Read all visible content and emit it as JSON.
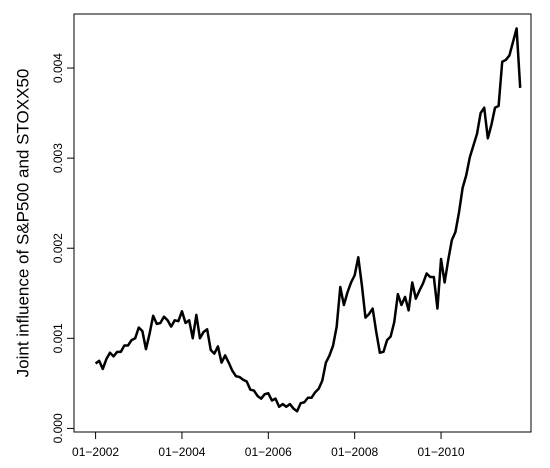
{
  "chart_data": {
    "type": "line",
    "ylabel": "Joint influence of S&P500 and STOXX50",
    "x": [
      "2002-01",
      "2002-02",
      "2002-03",
      "2002-04",
      "2002-05",
      "2002-06",
      "2002-07",
      "2002-08",
      "2002-09",
      "2002-10",
      "2002-11",
      "2002-12",
      "2003-01",
      "2003-02",
      "2003-03",
      "2003-04",
      "2003-05",
      "2003-06",
      "2003-07",
      "2003-08",
      "2003-09",
      "2003-10",
      "2003-11",
      "2003-12",
      "2004-01",
      "2004-02",
      "2004-03",
      "2004-04",
      "2004-05",
      "2004-06",
      "2004-07",
      "2004-08",
      "2004-09",
      "2004-10",
      "2004-11",
      "2004-12",
      "2005-01",
      "2005-02",
      "2005-03",
      "2005-04",
      "2005-05",
      "2005-06",
      "2005-07",
      "2005-08",
      "2005-09",
      "2005-10",
      "2005-11",
      "2005-12",
      "2006-01",
      "2006-02",
      "2006-03",
      "2006-04",
      "2006-05",
      "2006-06",
      "2006-07",
      "2006-08",
      "2006-09",
      "2006-10",
      "2006-11",
      "2006-12",
      "2007-01",
      "2007-02",
      "2007-03",
      "2007-04",
      "2007-05",
      "2007-06",
      "2007-07",
      "2007-08",
      "2007-09",
      "2007-10",
      "2007-11",
      "2007-12",
      "2008-01",
      "2008-02",
      "2008-03",
      "2008-04",
      "2008-05",
      "2008-06",
      "2008-07",
      "2008-08",
      "2008-09",
      "2008-10",
      "2008-11",
      "2008-12",
      "2009-01",
      "2009-02",
      "2009-03",
      "2009-04",
      "2009-05",
      "2009-06",
      "2009-07",
      "2009-08",
      "2009-09",
      "2009-10",
      "2009-11",
      "2009-12",
      "2010-01",
      "2010-02",
      "2010-03",
      "2010-04",
      "2010-05",
      "2010-06",
      "2010-07",
      "2010-08",
      "2010-09",
      "2010-10",
      "2010-11",
      "2010-12",
      "2011-01",
      "2011-02",
      "2011-03",
      "2011-04",
      "2011-05",
      "2011-06",
      "2011-07",
      "2011-08",
      "2011-09",
      "2011-10",
      "2011-11"
    ],
    "series": [
      {
        "color": "#000000",
        "values": [
          0.00072,
          0.00075,
          0.00066,
          0.00077,
          0.00084,
          0.0008,
          0.00085,
          0.00085,
          0.00092,
          0.00092,
          0.00098,
          0.001,
          0.00112,
          0.00108,
          0.00088,
          0.00105,
          0.00125,
          0.00116,
          0.00117,
          0.00124,
          0.0012,
          0.00113,
          0.0012,
          0.00119,
          0.0013,
          0.00117,
          0.0012,
          0.001,
          0.00126,
          0.001,
          0.00107,
          0.0011,
          0.00087,
          0.00083,
          0.00091,
          0.00073,
          0.00081,
          0.00073,
          0.00064,
          0.00058,
          0.00057,
          0.00054,
          0.00052,
          0.00043,
          0.00042,
          0.00036,
          0.00033,
          0.00038,
          0.00039,
          0.00031,
          0.00033,
          0.00024,
          0.00027,
          0.00024,
          0.00027,
          0.00022,
          0.00019,
          0.00028,
          0.00029,
          0.00034,
          0.00034,
          0.0004,
          0.00044,
          0.00053,
          0.00073,
          0.00081,
          0.00092,
          0.00113,
          0.00157,
          0.00137,
          0.00151,
          0.00162,
          0.0017,
          0.0019,
          0.00159,
          0.00123,
          0.00127,
          0.00133,
          0.00107,
          0.00084,
          0.00085,
          0.00098,
          0.00102,
          0.00118,
          0.00149,
          0.00137,
          0.00146,
          0.00131,
          0.00162,
          0.00144,
          0.00153,
          0.00161,
          0.00172,
          0.00168,
          0.00168,
          0.00133,
          0.00188,
          0.00162,
          0.00187,
          0.00209,
          0.00218,
          0.0024,
          0.00267,
          0.00281,
          0.00301,
          0.00314,
          0.00327,
          0.0035,
          0.00356,
          0.00322,
          0.00337,
          0.00356,
          0.00358,
          0.00407,
          0.00409,
          0.00414,
          0.00429,
          0.00444,
          0.00378
        ]
      }
    ],
    "xlim": [
      "2001-07",
      "2012-02"
    ],
    "xticks": [
      {
        "value": "2002-01",
        "label": "01−2002"
      },
      {
        "value": "2004-01",
        "label": "01−2004"
      },
      {
        "value": "2006-01",
        "label": "01−2006"
      },
      {
        "value": "2008-01",
        "label": "01−2008"
      },
      {
        "value": "2010-01",
        "label": "01−2010"
      }
    ],
    "ylim": [
      -4e-05,
      0.0046
    ],
    "yticks": [
      {
        "value": 0,
        "label": "0.000"
      },
      {
        "value": 0.001,
        "label": "0.001"
      },
      {
        "value": 0.002,
        "label": "0.002"
      },
      {
        "value": 0.003,
        "label": "0.003"
      },
      {
        "value": 0.004,
        "label": "0.004"
      }
    ]
  }
}
